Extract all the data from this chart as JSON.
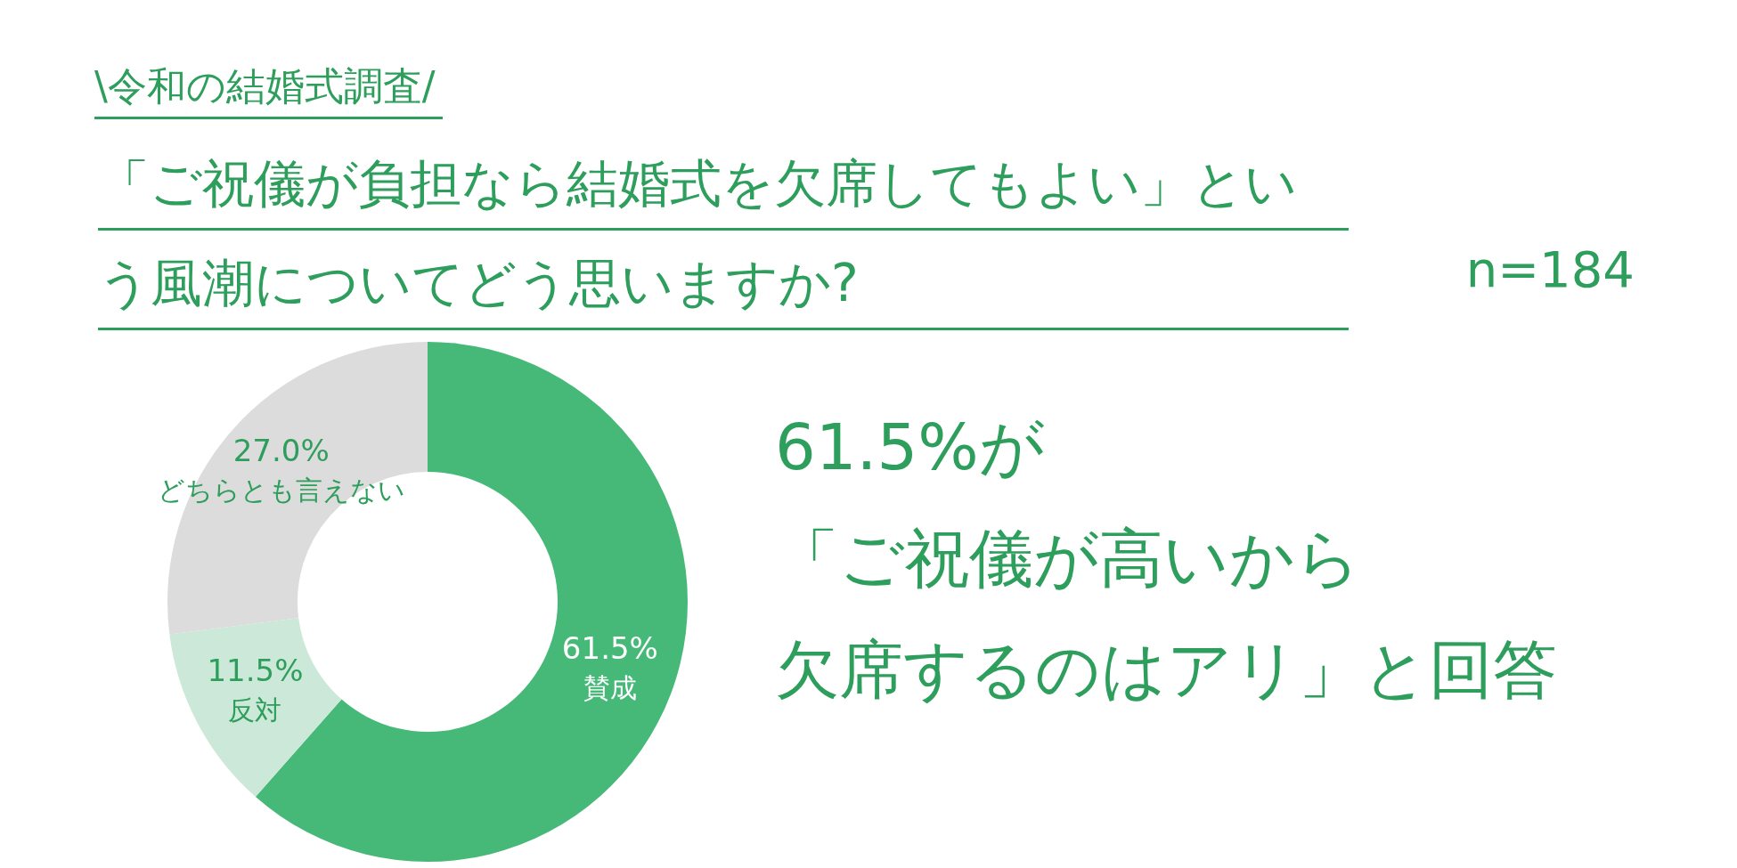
{
  "chart_data": {
    "type": "donut",
    "subtitle": "\\令和の結婚式調査/",
    "title": "「ご祝儀が負担なら結婚式を欠席してもよい」という風潮についてどう思いますか?",
    "categories": [
      "賛成",
      "反対",
      "どちらとも言えない"
    ],
    "values": [
      61.5,
      11.5,
      27.0
    ],
    "colors": [
      "#46b978",
      "#cce8d8",
      "#dcdcdc"
    ],
    "value_labels": [
      "61.5%",
      "11.5%",
      "27.0%"
    ],
    "legend": false,
    "annotations": [
      "n=184",
      "61.5%が",
      "「ご祝儀が高いから",
      "欠席するのはアリ」と回答"
    ]
  }
}
